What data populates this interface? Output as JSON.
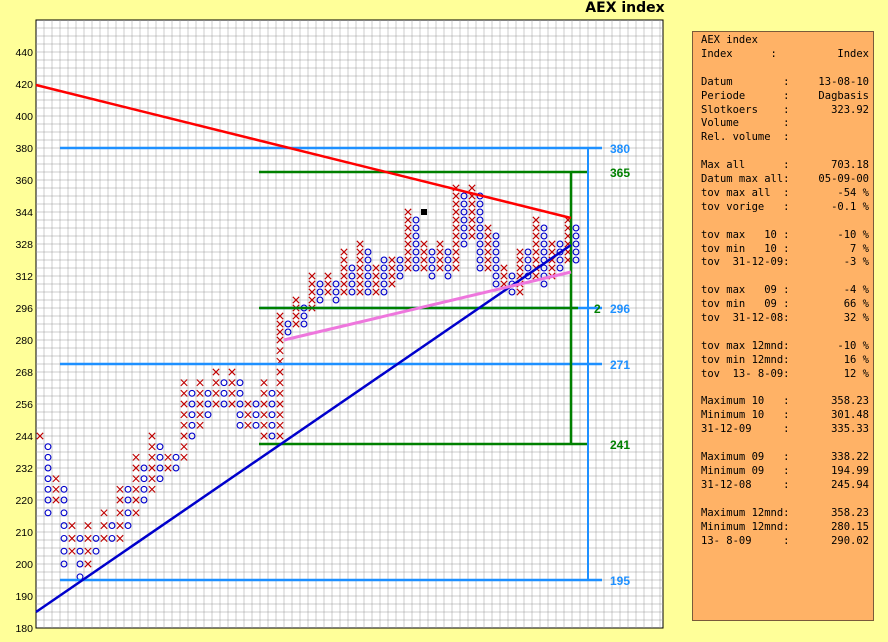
{
  "title": "AEX index",
  "colors": {
    "background": "#ffff99",
    "plot_background": "#ffffff",
    "grid": "#999999",
    "x_mark": "#c00000",
    "o_mark": "#0000cc",
    "down_trendline": "#ff0000",
    "up_trendline": "#0000cc",
    "channel_line": "#ee77dd",
    "horizontal_level": "#1e90ff",
    "box_outline": "#008000",
    "panel": "#ffb266"
  },
  "chart_data": {
    "type": "point-and-figure",
    "y_ticks": [
      180,
      190,
      200,
      210,
      220,
      232,
      244,
      256,
      268,
      280,
      296,
      312,
      328,
      344,
      360,
      380,
      400,
      420,
      440
    ],
    "ylim": [
      180,
      444
    ],
    "columns": [
      {
        "type": "X",
        "low": 244,
        "high": 244
      },
      {
        "type": "O",
        "low": 216,
        "high": 240
      },
      {
        "type": "X",
        "low": 220,
        "high": 228
      },
      {
        "type": "O",
        "low": 200,
        "high": 224
      },
      {
        "type": "X",
        "low": 204,
        "high": 212
      },
      {
        "type": "O",
        "low": 196,
        "high": 208
      },
      {
        "type": "X",
        "low": 200,
        "high": 212
      },
      {
        "type": "O",
        "low": 204,
        "high": 208
      },
      {
        "type": "X",
        "low": 208,
        "high": 216
      },
      {
        "type": "O",
        "low": 208,
        "high": 212
      },
      {
        "type": "X",
        "low": 208,
        "high": 224
      },
      {
        "type": "O",
        "low": 212,
        "high": 224
      },
      {
        "type": "X",
        "low": 216,
        "high": 236
      },
      {
        "type": "O",
        "low": 220,
        "high": 232
      },
      {
        "type": "X",
        "low": 224,
        "high": 244
      },
      {
        "type": "O",
        "low": 228,
        "high": 240
      },
      {
        "type": "X",
        "low": 232,
        "high": 236
      },
      {
        "type": "O",
        "low": 232,
        "high": 236
      },
      {
        "type": "X",
        "low": 236,
        "high": 264
      },
      {
        "type": "O",
        "low": 244,
        "high": 260
      },
      {
        "type": "X",
        "low": 248,
        "high": 264
      },
      {
        "type": "O",
        "low": 252,
        "high": 260
      },
      {
        "type": "X",
        "low": 256,
        "high": 268
      },
      {
        "type": "O",
        "low": 256,
        "high": 264
      },
      {
        "type": "X",
        "low": 256,
        "high": 268
      },
      {
        "type": "O",
        "low": 248,
        "high": 264
      },
      {
        "type": "X",
        "low": 248,
        "high": 256
      },
      {
        "type": "O",
        "low": 248,
        "high": 256
      },
      {
        "type": "X",
        "low": 244,
        "high": 264
      },
      {
        "type": "O",
        "low": 244,
        "high": 260
      },
      {
        "type": "X",
        "low": 244,
        "high": 292
      },
      {
        "type": "O",
        "low": 284,
        "high": 288
      },
      {
        "type": "X",
        "low": 288,
        "high": 300
      },
      {
        "type": "O",
        "low": 288,
        "high": 296
      },
      {
        "type": "X",
        "low": 296,
        "high": 312
      },
      {
        "type": "O",
        "low": 300,
        "high": 308
      },
      {
        "type": "X",
        "low": 304,
        "high": 312
      },
      {
        "type": "O",
        "low": 300,
        "high": 308
      },
      {
        "type": "X",
        "low": 304,
        "high": 324
      },
      {
        "type": "O",
        "low": 304,
        "high": 316
      },
      {
        "type": "X",
        "low": 304,
        "high": 328
      },
      {
        "type": "O",
        "low": 304,
        "high": 324
      },
      {
        "type": "X",
        "low": 304,
        "high": 316
      },
      {
        "type": "O",
        "low": 304,
        "high": 320
      },
      {
        "type": "X",
        "low": 308,
        "high": 320
      },
      {
        "type": "O",
        "low": 312,
        "high": 320
      },
      {
        "type": "X",
        "low": 316,
        "high": 344
      },
      {
        "type": "O",
        "low": 316,
        "high": 340
      },
      {
        "type": "X",
        "low": 316,
        "high": 328
      },
      {
        "type": "O",
        "low": 312,
        "high": 324
      },
      {
        "type": "X",
        "low": 316,
        "high": 328
      },
      {
        "type": "O",
        "low": 312,
        "high": 324
      },
      {
        "type": "X",
        "low": 316,
        "high": 356
      },
      {
        "type": "O",
        "low": 328,
        "high": 352
      },
      {
        "type": "X",
        "low": 332,
        "high": 356
      },
      {
        "type": "O",
        "low": 316,
        "high": 352
      },
      {
        "type": "X",
        "low": 316,
        "high": 336
      },
      {
        "type": "O",
        "low": 308,
        "high": 332
      },
      {
        "type": "X",
        "low": 308,
        "high": 316
      },
      {
        "type": "O",
        "low": 304,
        "high": 312
      },
      {
        "type": "X",
        "low": 304,
        "high": 324
      },
      {
        "type": "O",
        "low": 312,
        "high": 324
      },
      {
        "type": "X",
        "low": 312,
        "high": 340
      },
      {
        "type": "O",
        "low": 308,
        "high": 336
      },
      {
        "type": "X",
        "low": 312,
        "high": 328
      },
      {
        "type": "O",
        "low": 316,
        "high": 328
      },
      {
        "type": "X",
        "low": 320,
        "high": 340
      },
      {
        "type": "O",
        "low": 320,
        "high": 336
      }
    ],
    "current_box": {
      "column": 48,
      "value": 344
    },
    "levels": [
      {
        "value": 380,
        "label": "380",
        "color": "#1e90ff"
      },
      {
        "value": 365,
        "label": "365",
        "color": "#008000"
      },
      {
        "value": 296,
        "label": "296",
        "color": "#1e90ff"
      },
      {
        "value": 271,
        "label": "271",
        "color": "#1e90ff"
      },
      {
        "value": 241,
        "label": "241",
        "color": "#008000"
      },
      {
        "value": 195,
        "label": "195",
        "color": "#1e90ff"
      }
    ]
  },
  "info_rows": [
    {
      "label": "AEX index",
      "value": ""
    },
    {
      "label": "Index      :",
      "value": "Index"
    },
    {
      "label": "",
      "value": ""
    },
    {
      "label": "Datum        :",
      "value": "13-08-10"
    },
    {
      "label": "Periode      :",
      "value": "Dagbasis"
    },
    {
      "label": "Slotkoers    :",
      "value": "323.92"
    },
    {
      "label": "Volume       :",
      "value": ""
    },
    {
      "label": "Rel. volume  :",
      "value": ""
    },
    {
      "label": "",
      "value": ""
    },
    {
      "label": "Max all      :",
      "value": "703.18"
    },
    {
      "label": "Datum max all:",
      "value": "05-09-00"
    },
    {
      "label": "tov max all  :",
      "value": "-54 %"
    },
    {
      "label": "tov vorige   :",
      "value": "-0.1 %"
    },
    {
      "label": "",
      "value": ""
    },
    {
      "label": "tov max   10 :",
      "value": "-10 %"
    },
    {
      "label": "tov min   10 :",
      "value": "7 %"
    },
    {
      "label": "tov  31-12-09:",
      "value": "-3 %"
    },
    {
      "label": "",
      "value": ""
    },
    {
      "label": "tov max   09 :",
      "value": "-4 %"
    },
    {
      "label": "tov min   09 :",
      "value": "66 %"
    },
    {
      "label": "tov  31-12-08:",
      "value": "32 %"
    },
    {
      "label": "",
      "value": ""
    },
    {
      "label": "tov max 12mnd:",
      "value": "-10 %"
    },
    {
      "label": "tov min 12mnd:",
      "value": "16 %"
    },
    {
      "label": "tov  13- 8-09:",
      "value": "12 %"
    },
    {
      "label": "",
      "value": ""
    },
    {
      "label": "Maximum 10   :",
      "value": "358.23"
    },
    {
      "label": "Minimum 10   :",
      "value": "301.48"
    },
    {
      "label": "31-12-09     :",
      "value": "335.33"
    },
    {
      "label": "",
      "value": ""
    },
    {
      "label": "Maximum 09   :",
      "value": "338.22"
    },
    {
      "label": "Minimum 09   :",
      "value": "194.99"
    },
    {
      "label": "31-12-08     :",
      "value": "245.94"
    },
    {
      "label": "",
      "value": ""
    },
    {
      "label": "Maximum 12mnd:",
      "value": "358.23"
    },
    {
      "label": "Minimum 12mnd:",
      "value": "280.15"
    },
    {
      "label": "13- 8-09     :",
      "value": "290.02"
    }
  ]
}
